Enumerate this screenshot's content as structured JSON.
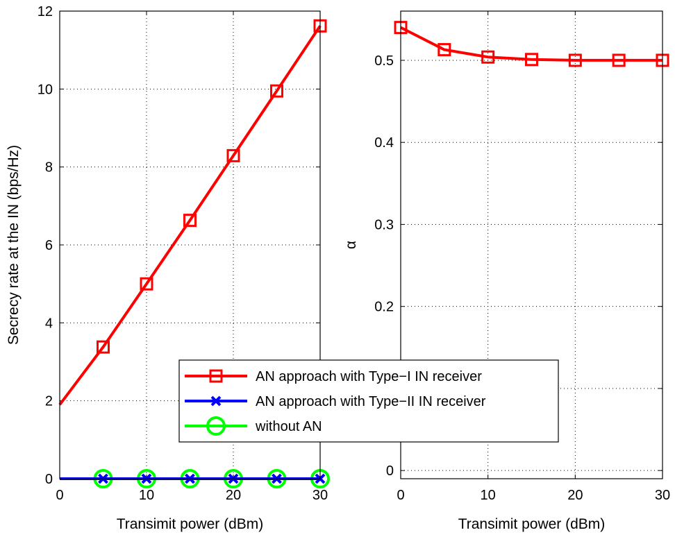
{
  "chart_data": [
    {
      "type": "line",
      "title": "",
      "xlabel": "Transimit power (dBm)",
      "ylabel": "Secrecy rate at the IN (bps/Hz)",
      "xlim": [
        0,
        30
      ],
      "ylim": [
        0,
        12
      ],
      "xticks": [
        "0",
        "10",
        "20",
        "30"
      ],
      "yticks": [
        "0",
        "2",
        "4",
        "6",
        "8",
        "10",
        "12"
      ],
      "grid": true,
      "legend_placement": "bottom-right",
      "series": [
        {
          "name": "AN approach with Type−I IN receiver",
          "color": "#ff0000",
          "marker": "square",
          "x": [
            0,
            5,
            10,
            15,
            20,
            25,
            30
          ],
          "y": [
            1.9,
            3.38,
            5.0,
            6.63,
            8.29,
            9.95,
            11.62
          ],
          "marker_x": [
            5,
            10,
            15,
            20,
            25,
            30
          ]
        },
        {
          "name": "AN approach with Type−II IN receiver",
          "color": "#0000ff",
          "marker": "x",
          "x": [
            0,
            5,
            10,
            15,
            20,
            25,
            30
          ],
          "y": [
            0,
            0,
            0,
            0,
            0,
            0,
            0
          ],
          "marker_x": [
            5,
            10,
            15,
            20,
            25,
            30
          ]
        },
        {
          "name": "without AN",
          "color": "#00ff00",
          "marker": "circle",
          "x": [
            0,
            5,
            10,
            15,
            20,
            25,
            30
          ],
          "y": [
            0,
            0,
            0,
            0,
            0,
            0,
            0
          ],
          "marker_x": [
            5,
            10,
            15,
            20,
            25,
            30
          ]
        }
      ]
    },
    {
      "type": "line",
      "title": "",
      "xlabel": "Transimit power (dBm)",
      "ylabel": "α",
      "xlim": [
        0,
        30
      ],
      "ylim": [
        -0.01,
        0.56
      ],
      "xticks": [
        "0",
        "10",
        "20",
        "30"
      ],
      "yticks": [
        "0",
        "0.1",
        "0.2",
        "0.3",
        "0.4",
        "0.5"
      ],
      "grid": true,
      "series": [
        {
          "name": "AN approach with Type−I IN receiver",
          "color": "#ff0000",
          "marker": "square",
          "x": [
            0,
            5,
            10,
            15,
            20,
            25,
            30
          ],
          "y": [
            0.54,
            0.513,
            0.504,
            0.501,
            0.5,
            0.5,
            0.5
          ],
          "marker_x": [
            0,
            5,
            10,
            15,
            20,
            25,
            30
          ]
        }
      ]
    }
  ]
}
